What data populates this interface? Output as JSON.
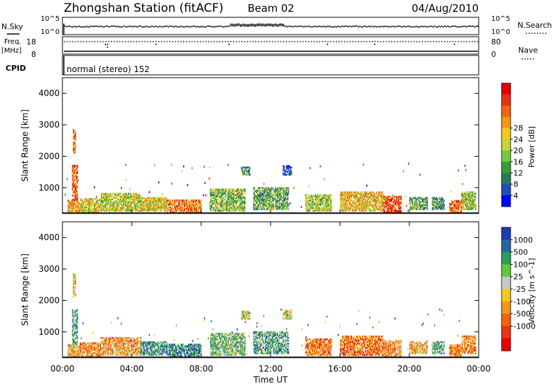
{
  "header": {
    "station": "Zhongshan Station (fitACF)",
    "beam": "Beam 02",
    "date": "04/Aug/2010"
  },
  "top_panels": {
    "nsky_label": "N.Sky",
    "nsky_ticks": [
      "10^5",
      "10^0"
    ],
    "nsearch_label": "N.Search",
    "nsearch_ticks": [
      "10^5",
      "10^0"
    ],
    "freq_label": "Freq.",
    "freq_unit": "[MHz]",
    "freq_ticks": [
      "18",
      "8"
    ],
    "nave_label": "Nave",
    "nave_ticks": [
      "80",
      "0"
    ],
    "cpid_label": "CPID",
    "cpid_text": "normal (stereo) 152"
  },
  "chart_data": [
    {
      "type": "heatmap",
      "name": "power",
      "ylabel": "Slant Range [km]",
      "ylim": [
        180,
        4500
      ],
      "yticks": [
        1000,
        2000,
        3000,
        4000
      ],
      "xlim": [
        0,
        24
      ],
      "colorbar": {
        "label": "Power [dB]",
        "ticks": [
          "4",
          "8",
          "12",
          "16",
          "20",
          "24",
          "28"
        ],
        "colors": [
          "#0000ff",
          "#1e50b4",
          "#28785a",
          "#3c9b3c",
          "#78c83c",
          "#c8d23c",
          "#f0c81e",
          "#f59614",
          "#f06414",
          "#e63214",
          "#e60000"
        ]
      },
      "bands": [
        {
          "t0": 0.3,
          "t1": 1.0,
          "r0": 200,
          "r1": 600,
          "level": 0.65
        },
        {
          "t0": 0.55,
          "t1": 0.85,
          "r0": 600,
          "r1": 1700,
          "level": 0.8
        },
        {
          "t0": 0.6,
          "t1": 0.75,
          "r0": 2100,
          "r1": 2850,
          "level": 0.7
        },
        {
          "t0": 1.0,
          "t1": 2.2,
          "r0": 220,
          "r1": 650,
          "level": 0.55
        },
        {
          "t0": 2.2,
          "t1": 4.5,
          "r0": 250,
          "r1": 800,
          "level": 0.5
        },
        {
          "t0": 4.5,
          "t1": 6.0,
          "r0": 250,
          "r1": 700,
          "level": 0.55
        },
        {
          "t0": 6.0,
          "t1": 8.0,
          "r0": 220,
          "r1": 600,
          "level": 0.75
        },
        {
          "t0": 8.5,
          "t1": 10.5,
          "r0": 250,
          "r1": 950,
          "level": 0.4
        },
        {
          "t0": 10.3,
          "t1": 10.8,
          "r0": 1400,
          "r1": 1650,
          "level": 0.25
        },
        {
          "t0": 11.0,
          "t1": 13.0,
          "r0": 300,
          "r1": 1000,
          "level": 0.35
        },
        {
          "t0": 12.7,
          "t1": 13.2,
          "r0": 1400,
          "r1": 1700,
          "level": 0.15
        },
        {
          "t0": 14.0,
          "t1": 15.5,
          "r0": 250,
          "r1": 750,
          "level": 0.45
        },
        {
          "t0": 16.0,
          "t1": 18.5,
          "r0": 250,
          "r1": 850,
          "level": 0.6
        },
        {
          "t0": 18.5,
          "t1": 19.5,
          "r0": 200,
          "r1": 700,
          "level": 0.85
        },
        {
          "t0": 20.0,
          "t1": 21.0,
          "r0": 300,
          "r1": 700,
          "level": 0.35
        },
        {
          "t0": 21.3,
          "t1": 22.0,
          "r0": 300,
          "r1": 700,
          "level": 0.3
        },
        {
          "t0": 22.3,
          "t1": 23.0,
          "r0": 200,
          "r1": 600,
          "level": 0.8
        },
        {
          "t0": 23.0,
          "t1": 23.8,
          "r0": 300,
          "r1": 850,
          "level": 0.45
        }
      ]
    },
    {
      "type": "heatmap",
      "name": "velocity",
      "ylabel": "Slant Range [km]",
      "xlabel": "Time UT",
      "ylim": [
        180,
        4500
      ],
      "yticks": [
        1000,
        2000,
        3000,
        4000
      ],
      "xlim": [
        0,
        24
      ],
      "xticks": [
        "00:00",
        "04:00",
        "08:00",
        "12:00",
        "16:00",
        "20:00",
        "00:00"
      ],
      "colorbar": {
        "label": "Velocity [m s^-1]",
        "ticks": [
          "1000",
          "500",
          "100",
          "25",
          "-25",
          "-100",
          "-500",
          "-1000"
        ],
        "colors": [
          "#1e3cb4",
          "#2864a0",
          "#28a05a",
          "#64c83c",
          "#c8c8c8",
          "#f5c81e",
          "#f59614",
          "#f06414",
          "#eb3214",
          "#e60000"
        ]
      },
      "bands": [
        {
          "t0": 0.3,
          "t1": 1.0,
          "r0": 200,
          "r1": 600,
          "level": 0.6
        },
        {
          "t0": 0.55,
          "t1": 0.85,
          "r0": 600,
          "r1": 1700,
          "level": 0.3
        },
        {
          "t0": 0.6,
          "t1": 0.75,
          "r0": 2100,
          "r1": 2850,
          "level": 0.55
        },
        {
          "t0": 1.0,
          "t1": 2.2,
          "r0": 220,
          "r1": 650,
          "level": 0.65
        },
        {
          "t0": 2.2,
          "t1": 4.5,
          "r0": 250,
          "r1": 800,
          "level": 0.62
        },
        {
          "t0": 4.5,
          "t1": 6.0,
          "r0": 250,
          "r1": 700,
          "level": 0.25
        },
        {
          "t0": 6.0,
          "t1": 8.0,
          "r0": 220,
          "r1": 600,
          "level": 0.2
        },
        {
          "t0": 8.5,
          "t1": 10.5,
          "r0": 250,
          "r1": 950,
          "level": 0.35
        },
        {
          "t0": 10.3,
          "t1": 10.8,
          "r0": 1400,
          "r1": 1650,
          "level": 0.45
        },
        {
          "t0": 11.0,
          "t1": 13.0,
          "r0": 300,
          "r1": 1000,
          "level": 0.3
        },
        {
          "t0": 12.7,
          "t1": 13.2,
          "r0": 1400,
          "r1": 1700,
          "level": 0.45
        },
        {
          "t0": 14.0,
          "t1": 15.5,
          "r0": 250,
          "r1": 750,
          "level": 0.7
        },
        {
          "t0": 16.0,
          "t1": 18.5,
          "r0": 250,
          "r1": 850,
          "level": 0.72
        },
        {
          "t0": 18.5,
          "t1": 19.5,
          "r0": 200,
          "r1": 700,
          "level": 0.65
        },
        {
          "t0": 20.0,
          "t1": 21.0,
          "r0": 300,
          "r1": 700,
          "level": 0.6
        },
        {
          "t0": 21.3,
          "t1": 22.0,
          "r0": 300,
          "r1": 700,
          "level": 0.3
        },
        {
          "t0": 22.3,
          "t1": 23.0,
          "r0": 200,
          "r1": 600,
          "level": 0.7
        },
        {
          "t0": 23.0,
          "t1": 23.8,
          "r0": 300,
          "r1": 850,
          "level": 0.68
        }
      ]
    }
  ]
}
